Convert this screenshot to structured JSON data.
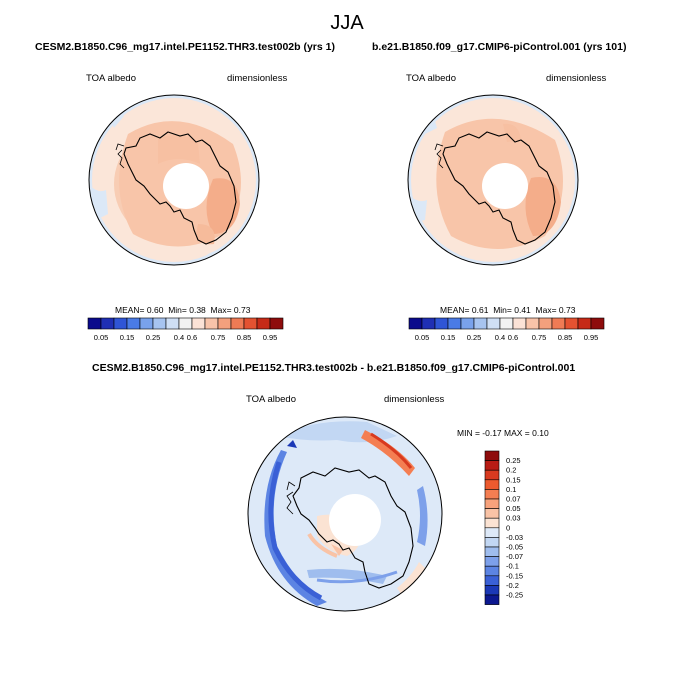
{
  "title": "JJA",
  "panels": [
    {
      "case_title": "CESM2.B1850.C96_mg17.intel.PE1152.THR3.test002b (yrs 1)",
      "variable": "TOA albedo",
      "units": "dimensionless",
      "stats": {
        "mean_label": "MEAN=",
        "mean": "0.60",
        "min_label": "Min=",
        "min": "0.38",
        "max_label": "Max=",
        "max": "0.73"
      }
    },
    {
      "case_title": "b.e21.B1850.f09_g17.CMIP6-piControl.001 (yrs 101)",
      "variable": "TOA albedo",
      "units": "dimensionless",
      "stats": {
        "mean_label": "MEAN=",
        "mean": "0.61",
        "min_label": "Min=",
        "min": "0.41",
        "max_label": "Max=",
        "max": "0.73"
      }
    }
  ],
  "horizontal_colorbar": {
    "ticks": [
      "0.05",
      "0.15",
      "0.25",
      "0.4",
      "0.6",
      "0.75",
      "0.85",
      "0.95"
    ],
    "colors": [
      "#0a0a8c",
      "#1f2fb4",
      "#2f55d6",
      "#4a7be6",
      "#79a2ec",
      "#a7c4f0",
      "#cfdff5",
      "#f2f2f2",
      "#fbe2d6",
      "#f8c3a9",
      "#f4a07d",
      "#ef7b55",
      "#e45231",
      "#c62a17",
      "#8e0c0c"
    ]
  },
  "difference_panel": {
    "title": "CESM2.B1850.C96_mg17.intel.PE1152.THR3.test002b - b.e21.B1850.f09_g17.CMIP6-piControl.001",
    "variable": "TOA albedo",
    "units": "dimensionless",
    "stats": {
      "min_label": "MIN =",
      "min": "-0.17",
      "max_label": "MAX =",
      "max": "0.10"
    },
    "colorbar_ticks": [
      "0.25",
      "0.2",
      "0.15",
      "0.1",
      "0.07",
      "0.05",
      "0.03",
      "0",
      "-0.03",
      "-0.05",
      "-0.07",
      "-0.1",
      "-0.15",
      "-0.2",
      "-0.25"
    ],
    "colorbar_colors": [
      "#8e0c0c",
      "#b81c14",
      "#d83a1f",
      "#ec5a2e",
      "#f47e52",
      "#f7a27c",
      "#f9c3a6",
      "#fbe3d3",
      "#dde9f8",
      "#c2d7f3",
      "#9fbdee",
      "#7da0ea",
      "#5c84e3",
      "#3a60d6",
      "#1b38b6",
      "#0c1890"
    ]
  }
}
